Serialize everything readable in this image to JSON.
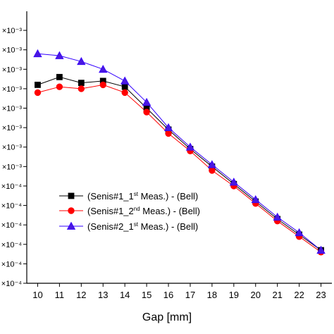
{
  "chart_data": {
    "type": "line",
    "xlabel": "Gap [mm]",
    "x": [
      10,
      11,
      12,
      13,
      14,
      15,
      16,
      17,
      18,
      19,
      20,
      21,
      22,
      23
    ],
    "xlim": [
      9.5,
      23.5
    ],
    "ylim": [
      0,
      13.8
    ],
    "ytick_labels": [
      "×10⁻⁴",
      "×10⁻⁴",
      "×10⁻⁴",
      "×10⁻⁴",
      "×10⁻⁴",
      "×10⁻⁴",
      "×10⁻³",
      "×10⁻³",
      "×10⁻³",
      "×10⁻³",
      "×10⁻³",
      "×10⁻³",
      "×10⁻³",
      "×10⁻³"
    ],
    "colors": {
      "series1": "#000000",
      "series2": "#ff0000",
      "series3": "#3300ff",
      "series3_fill": "#4a18e0"
    },
    "series": [
      {
        "name_parts": [
          "(Senis#1_1",
          "st",
          " Meas.) - (Bell)"
        ],
        "marker": "square",
        "values": [
          10.2,
          10.6,
          10.3,
          10.4,
          10.1,
          9.0,
          7.9,
          6.9,
          6.0,
          5.1,
          4.2,
          3.3,
          2.5,
          1.7
        ]
      },
      {
        "name_parts": [
          "(Senis#1_2",
          "nd",
          " Meas.) - (Bell)"
        ],
        "marker": "circle",
        "values": [
          9.8,
          10.1,
          10.0,
          10.2,
          9.8,
          8.8,
          7.7,
          6.8,
          5.8,
          5.0,
          4.1,
          3.2,
          2.4,
          1.6
        ]
      },
      {
        "name_parts": [
          "(Senis#2_1",
          "st",
          " Meas.) - (Bell)"
        ],
        "marker": "triangle",
        "values": [
          11.8,
          11.7,
          11.4,
          11.0,
          10.4,
          9.3,
          8.0,
          7.0,
          6.1,
          5.2,
          4.3,
          3.4,
          2.6,
          1.7
        ]
      }
    ]
  }
}
